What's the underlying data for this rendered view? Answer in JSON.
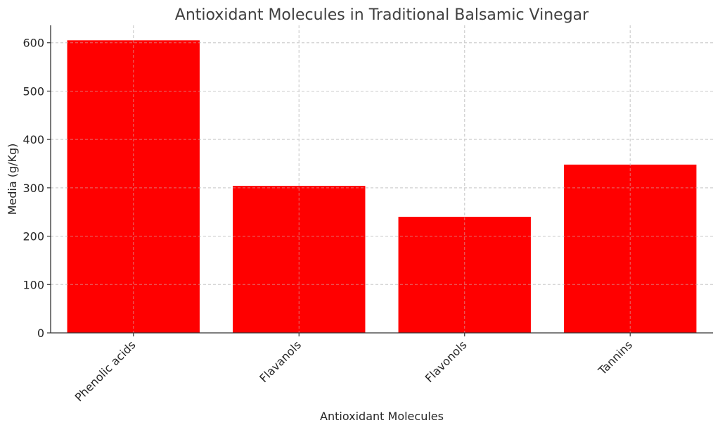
{
  "chart_data": {
    "type": "bar",
    "title": "Antioxidant Molecules in Traditional Balsamic Vinegar",
    "xlabel": "Antioxidant Molecules",
    "ylabel": "Media (g/Kg)",
    "categories": [
      "Phenolic acids",
      "Flavanols",
      "Flavonols",
      "Tannins"
    ],
    "values": [
      605,
      304,
      240,
      348
    ],
    "ylim": [
      0,
      636
    ],
    "yticks": [
      0,
      100,
      200,
      300,
      400,
      500,
      600
    ],
    "grid": true,
    "bar_color": "#ff0000"
  }
}
